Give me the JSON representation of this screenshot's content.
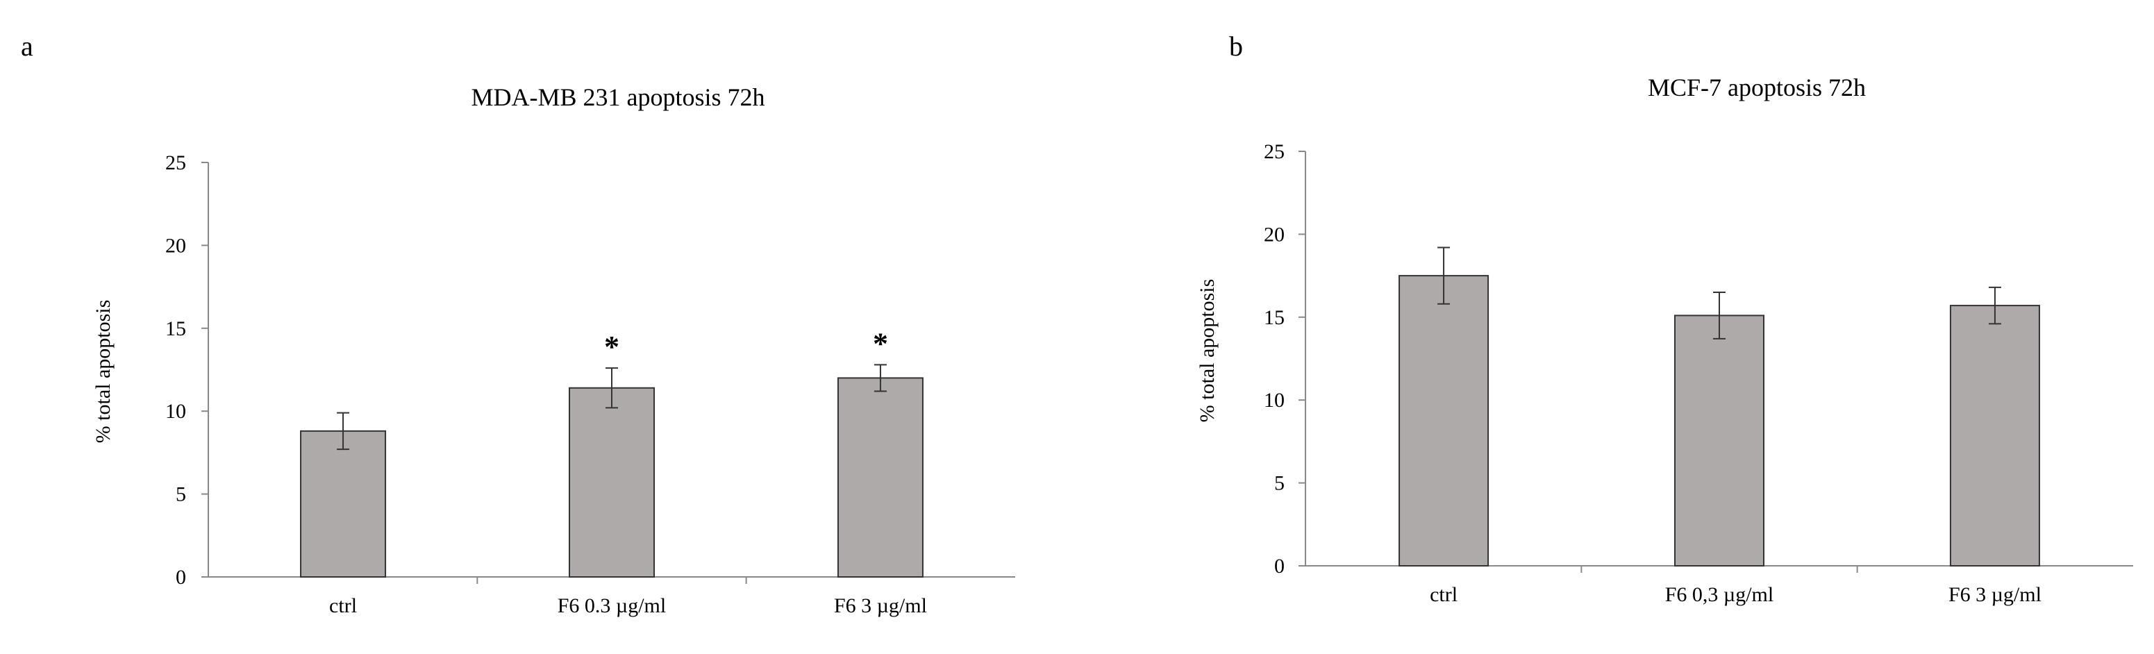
{
  "chart_data": [
    {
      "panel_label": "a",
      "type": "bar",
      "title": "MDA-MB 231 apoptosis 72h",
      "xlabel": "",
      "ylabel": "% total apoptosis",
      "ylim": [
        0,
        25
      ],
      "yticks": [
        "0",
        "5",
        "10",
        "15",
        "20",
        "25"
      ],
      "categories": [
        "ctrl",
        "F6 0.3 µg/ml",
        "F6 3 µg/ml"
      ],
      "values": [
        8.8,
        11.4,
        12.0
      ],
      "errors": [
        1.1,
        1.2,
        0.8
      ],
      "annotations": [
        "",
        "*",
        "*"
      ],
      "bar_color": "#aeaaaa",
      "grid": false,
      "legend": "none"
    },
    {
      "panel_label": "b",
      "type": "bar",
      "title": "MCF-7 apoptosis  72h",
      "xlabel": "",
      "ylabel": "% total apoptosis",
      "ylim": [
        0,
        25
      ],
      "yticks": [
        "0",
        "5",
        "10",
        "15",
        "20",
        "25"
      ],
      "categories": [
        "ctrl",
        "F6 0,3  µg/ml",
        "F6 3 µg/ml"
      ],
      "values": [
        17.5,
        15.1,
        15.7
      ],
      "errors": [
        1.7,
        1.4,
        1.1
      ],
      "annotations": [
        "",
        "",
        ""
      ],
      "bar_color": "#aeaaaa",
      "grid": false,
      "legend": "none"
    }
  ]
}
